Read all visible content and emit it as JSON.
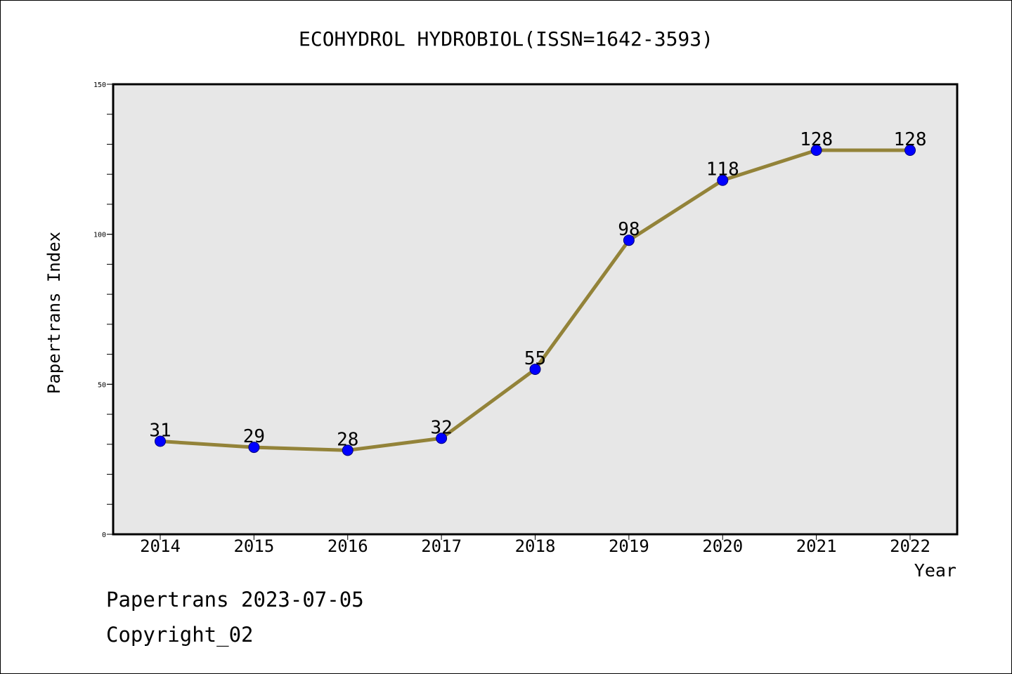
{
  "chart_data": {
    "type": "line",
    "title": "ECOHYDROL HYDROBIOL(ISSN=1642-3593)",
    "xlabel": "Year",
    "ylabel": "Papertrans Index",
    "categories": [
      "2014",
      "2015",
      "2016",
      "2017",
      "2018",
      "2019",
      "2020",
      "2021",
      "2022"
    ],
    "series": [
      {
        "values": [
          31,
          29,
          28,
          32,
          55,
          98,
          118,
          128,
          128
        ]
      }
    ],
    "data_labels": [
      "31",
      "29",
      "28",
      "32",
      "55",
      "98",
      "118",
      "128",
      "128"
    ],
    "ylim": [
      0,
      150
    ],
    "yticks": [
      0,
      50,
      100,
      150
    ],
    "y_minor_step": 10,
    "grid": false,
    "legend": "none",
    "colors": {
      "plot_background": "#e7e7e7",
      "line": "#938339",
      "marker": "#0000ff",
      "marker_edge": "#00007a"
    }
  },
  "footer": {
    "date_text": "Papertrans 2023-07-05",
    "copyright_text": "Copyright_02"
  }
}
